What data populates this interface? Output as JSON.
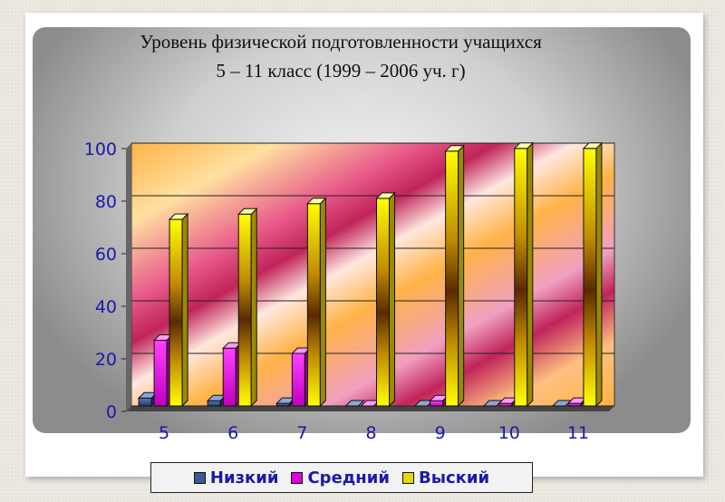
{
  "chart_data": {
    "type": "bar",
    "title": "Уровень физической подготовленности учащихся",
    "subtitle": "5 – 11 класс (1999 – 2006 уч. г)",
    "categories": [
      "5",
      "6",
      "7",
      "8",
      "9",
      "10",
      "11"
    ],
    "series": [
      {
        "name": "Низкий",
        "values": [
          3,
          2,
          1,
          0,
          0,
          0,
          0
        ],
        "color": "#3b5a94"
      },
      {
        "name": "Средний",
        "values": [
          25,
          22,
          20,
          0,
          2,
          1,
          1
        ],
        "color": "#e000e0"
      },
      {
        "name": "Выский",
        "values": [
          71,
          73,
          77,
          79,
          97,
          98,
          98
        ],
        "color": "#ffff00"
      }
    ],
    "ylim": [
      0,
      100
    ],
    "yticks": [
      "0",
      "20",
      "40",
      "60",
      "80",
      "100"
    ],
    "grid": true,
    "legend_position": "bottom",
    "label_color": "#1a1aa8"
  }
}
